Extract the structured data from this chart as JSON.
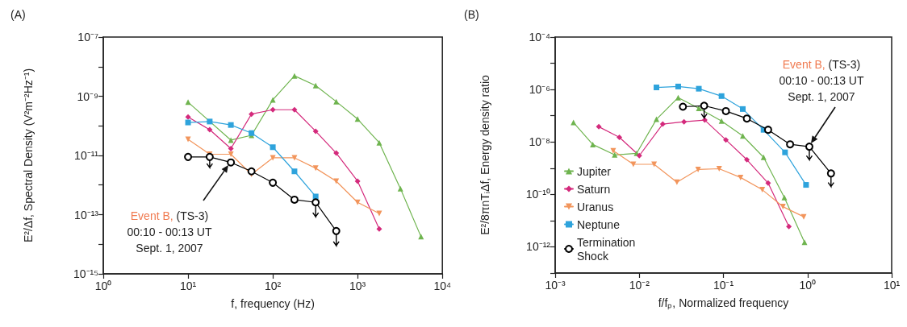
{
  "chart_data": [
    {
      "type": "line",
      "title": "(A)",
      "xlabel": "f, frequency (Hz)",
      "ylabel": "E²/Δf, Spectral Density (V²m⁻²Hz⁻¹)",
      "log": "xy",
      "legend": false,
      "line_style": "solid",
      "xlim": [
        1,
        10000
      ],
      "ylim": [
        1e-15,
        1e-07
      ],
      "xticks": [
        {
          "value": 1,
          "label": "10⁰"
        },
        {
          "value": 10,
          "label": "10¹"
        },
        {
          "value": 100,
          "label": "10²"
        },
        {
          "value": 1000,
          "label": "10³"
        },
        {
          "value": 10000,
          "label": "10⁴"
        }
      ],
      "yticks": [
        {
          "value": 1e-15,
          "label": "10⁻¹⁵"
        },
        {
          "value": 1e-14,
          "label": null
        },
        {
          "value": 1e-13,
          "label": "10⁻¹³"
        },
        {
          "value": 1e-12,
          "label": null
        },
        {
          "value": 1e-11,
          "label": "10⁻¹¹"
        },
        {
          "value": 1e-10,
          "label": null
        },
        {
          "value": 1e-09,
          "label": "10⁻⁹"
        },
        {
          "value": 1e-08,
          "label": null
        },
        {
          "value": 1e-07,
          "label": "10⁻⁷"
        }
      ],
      "series": [
        {
          "color": "#6fb44f",
          "marker": "triangle",
          "x": [
            10,
            32,
            56,
            100,
            180,
            320,
            560,
            1000,
            1800,
            3200,
            5600
          ],
          "values": [
            6.3e-10,
            3.3e-11,
            4.8e-11,
            7.6e-10,
            4.9e-09,
            2.3e-09,
            6.6e-10,
            1.7e-10,
            2.7e-11,
            7.6e-13,
            1.8e-14
          ]
        },
        {
          "color": "#d42a7c",
          "marker": "diamond",
          "x": [
            10,
            18,
            32,
            56,
            100,
            180,
            320,
            560,
            1000,
            1800
          ],
          "values": [
            2e-10,
            7.4e-11,
            1.7e-11,
            2.5e-10,
            3.5e-10,
            3.5e-10,
            6.6e-11,
            1.2e-11,
            1.35e-12,
            3.3e-14
          ]
        },
        {
          "color": "#f2955c",
          "marker": "triangle-down",
          "x": [
            10,
            18,
            32,
            56,
            100,
            180,
            320,
            560,
            1000,
            1800
          ],
          "values": [
            3.5e-11,
            1.1e-11,
            1.1e-11,
            2.3e-12,
            8.3e-12,
            8.3e-12,
            3.7e-12,
            1.35e-12,
            2.6e-13,
            1.1e-13
          ]
        },
        {
          "color": "#2ea3dc",
          "marker": "square",
          "x": [
            10,
            18,
            32,
            56,
            100,
            180,
            320
          ],
          "values": [
            1.3e-10,
            1.4e-10,
            1.07e-10,
            5.7e-11,
            1.9e-11,
            2.9e-12,
            4.1e-13
          ]
        },
        {
          "color": "#000000",
          "marker": "circle",
          "x": [
            10,
            18,
            32,
            56,
            100,
            180,
            320,
            560
          ],
          "values": [
            8.9e-12,
            8.9e-12,
            5.8e-12,
            2.9e-12,
            1.2e-12,
            3.2e-13,
            2.6e-13,
            2.8e-14
          ],
          "errors": [
            null,
            [
              3.9e-12,
              8.9e-12
            ],
            null,
            null,
            null,
            null,
            [
              8.5e-14,
              2.6e-13
            ],
            [
              9e-15,
              2.8e-14
            ]
          ]
        }
      ],
      "annotations": [
        "Event B, (TS-3)\n00:10 - 00:13 UT\nSept. 1, 2007"
      ]
    },
    {
      "type": "line",
      "title": "(B)",
      "xlabel": "f/fₚ, Normalized frequency",
      "ylabel": "E²/8πnTᵢΔf, Energy density ratio",
      "log": "xy",
      "legend": "bottom left",
      "line_style": "solid",
      "xlim": [
        0.001,
        10
      ],
      "ylim": [
        1e-13,
        0.0001
      ],
      "xticks": [
        {
          "value": 0.001,
          "label": "10⁻³"
        },
        {
          "value": 0.01,
          "label": "10⁻²"
        },
        {
          "value": 0.1,
          "label": "10⁻¹"
        },
        {
          "value": 1,
          "label": "10⁰"
        },
        {
          "value": 10,
          "label": "10¹"
        }
      ],
      "yticks": [
        {
          "value": 1e-13,
          "label": null
        },
        {
          "value": 1e-12,
          "label": "10⁻¹²"
        },
        {
          "value": 1e-11,
          "label": null
        },
        {
          "value": 1e-10,
          "label": "10⁻¹⁰"
        },
        {
          "value": 1e-09,
          "label": null
        },
        {
          "value": 1e-08,
          "label": "10⁻⁸"
        },
        {
          "value": 1e-07,
          "label": null
        },
        {
          "value": 1e-06,
          "label": "10⁻⁶"
        },
        {
          "value": 1e-05,
          "label": null
        },
        {
          "value": 0.0001,
          "label": "10⁻⁴"
        }
      ],
      "series": [
        {
          "name": "Jupiter",
          "color": "#6fb44f",
          "marker": "triangle",
          "x": [
            0.00165,
            0.0028,
            0.0051,
            0.0093,
            0.016,
            0.029,
            0.051,
            0.095,
            0.17,
            0.3,
            0.53,
            0.92
          ],
          "values": [
            5.5e-08,
            8e-09,
            3.2e-09,
            3.7e-09,
            7.3e-08,
            4.9e-07,
            1.9e-07,
            6.3e-08,
            1.7e-08,
            2.6e-09,
            7.6e-11,
            1.5e-12
          ]
        },
        {
          "name": "Saturn",
          "color": "#d42a7c",
          "marker": "diamond",
          "x": [
            0.0033,
            0.0058,
            0.01,
            0.019,
            0.034,
            0.06,
            0.107,
            0.19,
            0.34,
            0.6
          ],
          "values": [
            3.8e-08,
            1.5e-08,
            3e-09,
            4.8e-08,
            5.9e-08,
            6.8e-08,
            1.2e-08,
            2.1e-09,
            2.7e-10,
            5.9e-12
          ]
        },
        {
          "name": "Uranus",
          "color": "#f2955c",
          "marker": "triangle-down",
          "x": [
            0.0049,
            0.0085,
            0.015,
            0.028,
            0.05,
            0.089,
            0.16,
            0.29,
            0.51,
            0.9
          ],
          "values": [
            4.6e-09,
            1.4e-09,
            1.4e-09,
            2.9e-10,
            8.9e-10,
            9.5e-10,
            4.4e-10,
            1.5e-10,
            3.4e-11,
            1.4e-11
          ]
        },
        {
          "name": "Neptune",
          "color": "#2ea3dc",
          "marker": "square",
          "x": [
            0.016,
            0.029,
            0.051,
            0.095,
            0.17,
            0.3,
            0.54,
            0.96
          ],
          "values": [
            1.2e-06,
            1.3e-06,
            1.07e-06,
            5.6e-07,
            1.8e-07,
            2.9e-08,
            4e-09,
            2.3e-10
          ]
        },
        {
          "name": "Termination Shock",
          "color": "#000000",
          "marker": "circle",
          "x": [
            0.033,
            0.059,
            0.107,
            0.19,
            0.34,
            0.62,
            1.05,
            1.9
          ],
          "values": [
            2.2e-07,
            2.4e-07,
            1.5e-07,
            7.8e-08,
            2.9e-08,
            8.1e-09,
            6.6e-09,
            6.3e-10
          ],
          "errors": [
            null,
            [
              8.3e-08,
              2.4e-07
            ],
            null,
            null,
            null,
            null,
            [
              2.1e-09,
              6.6e-09
            ],
            [
              2e-10,
              6.3e-10
            ]
          ]
        }
      ],
      "annotations": [
        "Event B, (TS-3)\n00:10 - 00:13 UT\nSept. 1, 2007"
      ]
    }
  ]
}
